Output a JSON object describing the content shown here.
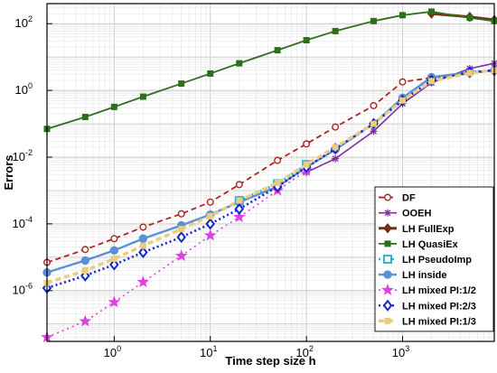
{
  "chart_data": {
    "type": "line",
    "title": "",
    "xlabel": "Time step size h",
    "ylabel": "Errors",
    "x_scale": "log",
    "y_scale": "log",
    "xlim": [
      0.2,
      9000
    ],
    "ylim": [
      3e-08,
      400
    ],
    "grid": true,
    "legend_position": "bottom-right",
    "x_ticks": [
      {
        "value": 1,
        "base": "10",
        "exp": "0"
      },
      {
        "value": 10,
        "base": "10",
        "exp": "1"
      },
      {
        "value": 100,
        "base": "10",
        "exp": "2"
      },
      {
        "value": 1000,
        "base": "10",
        "exp": "3"
      }
    ],
    "y_ticks": [
      {
        "value": 1e-06,
        "base": "10",
        "exp": "-6"
      },
      {
        "value": 0.0001,
        "base": "10",
        "exp": "-4"
      },
      {
        "value": 0.01,
        "base": "10",
        "exp": "-2"
      },
      {
        "value": 1,
        "base": "10",
        "exp": "0"
      },
      {
        "value": 100,
        "base": "10",
        "exp": "2"
      }
    ],
    "series": [
      {
        "name": "DF",
        "color": "#b22222",
        "marker": "circle-open",
        "dash": "6,4",
        "width": 1.8,
        "x": [
          0.2,
          0.5,
          1,
          2,
          5,
          10,
          20,
          50,
          100,
          200,
          500,
          1000,
          2000,
          5000,
          9000
        ],
        "y": [
          7e-06,
          1.7e-05,
          3.6e-05,
          8e-05,
          0.0002,
          0.00045,
          0.0015,
          0.008,
          0.025,
          0.08,
          0.35,
          1.8,
          2.4,
          3.2,
          4
        ]
      },
      {
        "name": "OOEH",
        "color": "#7a2fa8",
        "marker": "asterisk",
        "dash": "",
        "width": 1.6,
        "x": [
          100,
          200,
          500,
          1000,
          2000,
          5000,
          9000
        ],
        "y": [
          0.0035,
          0.009,
          0.06,
          0.4,
          1.7,
          4.5,
          6.5
        ]
      },
      {
        "name": "LH FullExp",
        "color": "#7b2d14",
        "marker": "diamond-filled",
        "dash": "",
        "width": 3,
        "x": [
          2000,
          5000,
          9000
        ],
        "y": [
          200,
          160,
          130
        ]
      },
      {
        "name": "LH QuasiEx",
        "color": "#2e6f1e",
        "marker": "square-filled",
        "dash": "",
        "width": 1.8,
        "x": [
          0.2,
          0.5,
          1,
          2,
          5,
          10,
          20,
          50,
          100,
          200,
          500,
          1000,
          2000,
          5000,
          9000
        ],
        "y": [
          0.07,
          0.16,
          0.32,
          0.65,
          1.6,
          3.2,
          6.5,
          16,
          32,
          60,
          120,
          180,
          230,
          150,
          120
        ]
      },
      {
        "name": "LH PseudoImp",
        "color": "#2cb5cc",
        "marker": "square-open",
        "dash": "2,3",
        "width": 2.6,
        "x": [
          20,
          50,
          100
        ],
        "y": [
          0.0005,
          0.0016,
          0.006
        ]
      },
      {
        "name": "LH inside",
        "color": "#5b8fd6",
        "marker": "circle-filled",
        "dash": "",
        "width": 2.4,
        "x": [
          0.2,
          0.5,
          1,
          2,
          5,
          10,
          20,
          50,
          100,
          200,
          500,
          1000,
          2000,
          5000,
          9000
        ],
        "y": [
          3.5e-06,
          8e-06,
          1.6e-05,
          3.6e-05,
          9e-05,
          0.00019,
          0.00045,
          0.0013,
          0.005,
          0.017,
          0.1,
          0.6,
          2.5,
          3.5,
          4
        ]
      },
      {
        "name": "LH mixed PI:1/2",
        "color": "#e040e0",
        "marker": "star-filled",
        "dash": "2,4",
        "width": 1.6,
        "x": [
          0.2,
          0.5,
          1,
          2,
          5,
          10,
          20,
          50,
          100
        ],
        "y": [
          4e-08,
          1.2e-07,
          4.5e-07,
          1.8e-06,
          1.1e-05,
          4.5e-05,
          0.00016,
          0.001,
          0.004
        ]
      },
      {
        "name": "LH mixed PI:2/3",
        "color": "#1428c8",
        "marker": "diamond-open",
        "dash": "2,3",
        "width": 2.6,
        "x": [
          0.2,
          0.5,
          1,
          2,
          5,
          10,
          20,
          50,
          100,
          200,
          500,
          1000,
          2000,
          5000,
          9000
        ],
        "y": [
          1.2e-06,
          2.8e-06,
          6e-06,
          1.4e-05,
          4e-05,
          0.0001,
          0.00028,
          0.0013,
          0.005,
          0.018,
          0.1,
          0.5,
          2,
          3.5,
          4
        ]
      },
      {
        "name": "LH mixed PI:1/3",
        "color": "#e8cd80",
        "marker": "square-filled",
        "dash": "6,4",
        "width": 3.4,
        "x": [
          0.2,
          0.5,
          1,
          2,
          5,
          10,
          20,
          50,
          100,
          200,
          500,
          1000,
          2000,
          5000,
          9000
        ],
        "y": [
          1.7e-06,
          4e-06,
          9e-06,
          2.2e-05,
          7e-05,
          0.00017,
          0.0005,
          0.0017,
          0.006,
          0.02,
          0.1,
          0.5,
          1.9,
          3.3,
          4
        ]
      }
    ]
  }
}
